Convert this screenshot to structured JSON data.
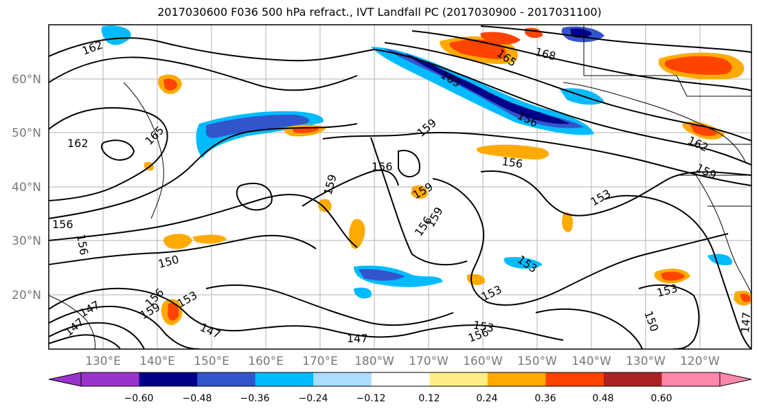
{
  "title": "2017030600 F036 500 hPa refract., IVT Landfall PC (2017030900 - 2017031100)",
  "axes": {
    "lat_labels": [
      "60°N",
      "50°N",
      "40°N",
      "30°N",
      "20°N"
    ],
    "lon_labels": [
      "130°E",
      "140°E",
      "150°E",
      "160°E",
      "170°E",
      "180°W",
      "170°W",
      "160°W",
      "150°W",
      "140°W",
      "130°W",
      "120°W"
    ]
  },
  "colorbar": {
    "colors": [
      "#9a33cc",
      "#000088",
      "#3355cc",
      "#00bbff",
      "#aaddff",
      "#ffffff",
      "#ffee88",
      "#ffaa00",
      "#ff4400",
      "#aa2222",
      "#ff88aa"
    ],
    "ticks": [
      "−0.60",
      "−0.48",
      "−0.36",
      "−0.24",
      "−0.12",
      "0.12",
      "0.24",
      "0.36",
      "0.48",
      "0.60"
    ]
  },
  "contour_labels": [
    {
      "text": "162"
    },
    {
      "text": "165"
    },
    {
      "text": "168"
    },
    {
      "text": "165"
    },
    {
      "text": "162"
    },
    {
      "text": "165"
    },
    {
      "text": "156"
    },
    {
      "text": "159"
    },
    {
      "text": "156"
    },
    {
      "text": "156"
    },
    {
      "text": "159"
    },
    {
      "text": "159"
    },
    {
      "text": "156"
    },
    {
      "text": "159"
    },
    {
      "text": "153"
    },
    {
      "text": "156"
    },
    {
      "text": "156"
    },
    {
      "text": "150"
    },
    {
      "text": "153"
    },
    {
      "text": "153"
    },
    {
      "text": "153"
    },
    {
      "text": "147"
    },
    {
      "text": "147"
    },
    {
      "text": "150"
    },
    {
      "text": "147"
    },
    {
      "text": "153"
    },
    {
      "text": "156"
    },
    {
      "text": "147"
    },
    {
      "text": "156"
    },
    {
      "text": "159"
    },
    {
      "text": "153"
    },
    {
      "text": "147"
    },
    {
      "text": "162"
    },
    {
      "text": "159"
    }
  ]
}
